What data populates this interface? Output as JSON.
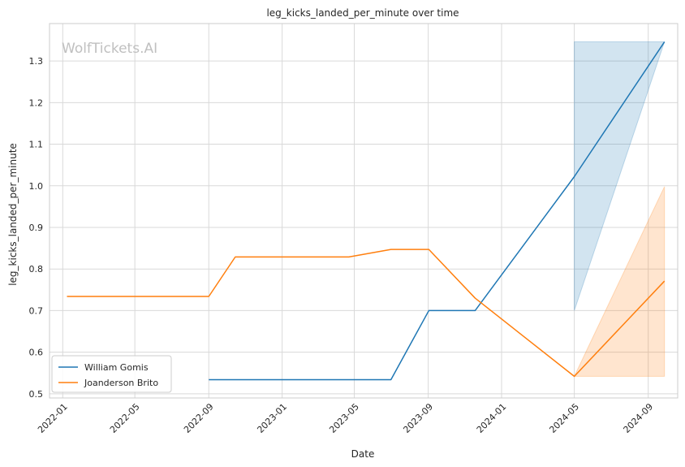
{
  "chart_data": {
    "type": "line",
    "title": "leg_kicks_landed_per_minute over time",
    "xlabel": "Date",
    "ylabel": "leg_kicks_landed_per_minute",
    "watermark": "WolfTickets.AI",
    "ylim": [
      0.49,
      1.39
    ],
    "xlim": [
      "2021-12-10",
      "2024-10-20"
    ],
    "yticks": [
      "0.5",
      "0.6",
      "0.7",
      "0.8",
      "0.9",
      "1.0",
      "1.1",
      "1.2",
      "1.3"
    ],
    "xticks": [
      "2022-01",
      "2022-05",
      "2022-09",
      "2023-01",
      "2023-05",
      "2023-09",
      "2024-01",
      "2024-05",
      "2024-09"
    ],
    "grid": true,
    "legend_position": "lower-left",
    "series": [
      {
        "name": "William Gomis",
        "color": "#1f77b4",
        "points": [
          {
            "x": "2022-09-01",
            "y": 0.534
          },
          {
            "x": "2023-07-01",
            "y": 0.534
          },
          {
            "x": "2023-09-02",
            "y": 0.7
          },
          {
            "x": "2023-11-18",
            "y": 0.7
          },
          {
            "x": "2024-05-01",
            "y": 1.022
          },
          {
            "x": "2024-09-28",
            "y": 1.346
          }
        ],
        "band": [
          {
            "x": "2024-05-01",
            "low": 0.7,
            "high": 1.346
          },
          {
            "x": "2024-09-28",
            "low": 1.346,
            "high": 1.346
          }
        ]
      },
      {
        "name": "Joanderson Brito",
        "color": "#ff7f0e",
        "points": [
          {
            "x": "2022-01-08",
            "y": 0.734
          },
          {
            "x": "2022-09-01",
            "y": 0.734
          },
          {
            "x": "2022-10-15",
            "y": 0.829
          },
          {
            "x": "2023-04-22",
            "y": 0.829
          },
          {
            "x": "2023-07-01",
            "y": 0.847
          },
          {
            "x": "2023-09-02",
            "y": 0.847
          },
          {
            "x": "2023-11-18",
            "y": 0.73
          },
          {
            "x": "2024-05-01",
            "y": 0.542
          },
          {
            "x": "2024-09-28",
            "y": 0.771
          }
        ],
        "band": [
          {
            "x": "2024-05-01",
            "low": 0.542,
            "high": 0.542
          },
          {
            "x": "2024-09-28",
            "low": 0.542,
            "high": 0.998
          }
        ]
      }
    ]
  }
}
